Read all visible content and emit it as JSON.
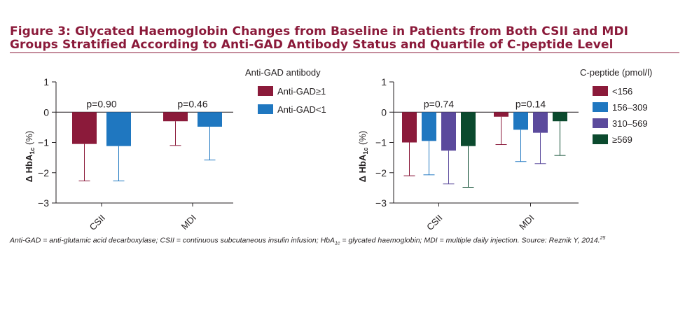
{
  "figure": {
    "title_line1": "Figure 3: Glycated Haemoglobin Changes from Baseline in Patients from Both CSII and MDI",
    "title_line2": "Groups Stratified According to Anti-GAD Antibody Status and Quartile of C-peptide Level",
    "footnote": "Anti-GAD = anti-glutamic acid decarboxylase; CSII = continuous subcutaneous insulin infusion; HbA1c = glycated haemoglobin; MDI = multiple daily injection. Source: Reznik Y, 2014.25"
  },
  "chart_data": [
    {
      "type": "bar",
      "ylabel": "Δ HbA1c (%)",
      "ylim": [
        -3,
        1
      ],
      "yticks": [
        1,
        0,
        -1,
        -2,
        -3
      ],
      "categories": [
        "CSII",
        "MDI"
      ],
      "legend_title": "Anti-GAD antibody",
      "legend_position": "top-right",
      "series": [
        {
          "name": "Anti-GAD≥1",
          "color": "#8b1a3a",
          "values": [
            -1.05,
            -0.3
          ],
          "error_low": [
            -2.27,
            -1.1
          ]
        },
        {
          "name": "Anti-GAD<1",
          "color": "#1f77c0",
          "values": [
            -1.12,
            -0.48
          ],
          "error_low": [
            -2.27,
            -1.58
          ]
        }
      ],
      "pvalues": [
        "p=0.90",
        "p=0.46"
      ]
    },
    {
      "type": "bar",
      "ylabel": "Δ HbA1c (%)",
      "ylim": [
        -3,
        1
      ],
      "yticks": [
        1,
        0,
        -1,
        -2,
        -3
      ],
      "categories": [
        "CSII",
        "MDI"
      ],
      "legend_title": "C-peptide (pmol/l)",
      "legend_position": "top-right",
      "series": [
        {
          "name": "<156",
          "color": "#8b1a3a",
          "values": [
            -1.0,
            -0.15
          ],
          "error_low": [
            -2.1,
            -1.07
          ]
        },
        {
          "name": "156–309",
          "color": "#1f77c0",
          "values": [
            -0.95,
            -0.58
          ],
          "error_low": [
            -2.07,
            -1.63
          ]
        },
        {
          "name": "310–569",
          "color": "#5b4a9c",
          "values": [
            -1.27,
            -0.68
          ],
          "error_low": [
            -2.37,
            -1.7
          ]
        },
        {
          "name": "≥569",
          "color": "#0b4a2e",
          "values": [
            -1.12,
            -0.3
          ],
          "error_low": [
            -2.48,
            -1.43
          ]
        }
      ],
      "pvalues": [
        "p=0.74",
        "p=0.14"
      ]
    }
  ]
}
